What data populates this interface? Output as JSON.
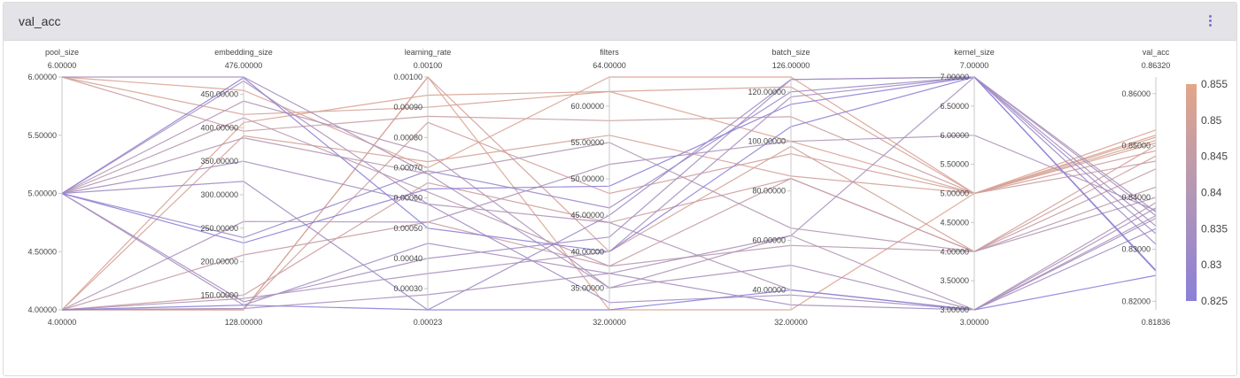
{
  "card": {
    "title": "val_acc"
  },
  "colors": {
    "low": "#8b7fd9",
    "mid": "#b497b5",
    "high": "#e2a68a"
  },
  "chart_data": {
    "type": "parallel_coordinates",
    "color_dimension": "val_acc",
    "axes": [
      {
        "name": "pool_size",
        "max_label": "6.00000",
        "min_label": "4.00000",
        "range": [
          4,
          6
        ],
        "ticks": [
          "4.00000",
          "4.50000",
          "5.00000",
          "5.50000",
          "6.00000"
        ],
        "tick_values": [
          4,
          4.5,
          5,
          5.5,
          6
        ]
      },
      {
        "name": "embedding_size",
        "max_label": "476.00000",
        "min_label": "128.00000",
        "range": [
          128,
          476
        ],
        "ticks": [
          "150.00000",
          "200.00000",
          "250.00000",
          "300.00000",
          "350.00000",
          "400.00000",
          "450.00000"
        ],
        "tick_values": [
          150,
          200,
          250,
          300,
          350,
          400,
          450
        ]
      },
      {
        "name": "learning_rate",
        "max_label": "0.00100",
        "min_label": "0.00023",
        "range": [
          0.00023,
          0.001
        ],
        "ticks": [
          "0.00030",
          "0.00040",
          "0.00050",
          "0.00060",
          "0.00070",
          "0.00080",
          "0.00090",
          "0.00100"
        ],
        "tick_values": [
          0.0003,
          0.0004,
          0.0005,
          0.0006,
          0.0007,
          0.0008,
          0.0009,
          0.001
        ]
      },
      {
        "name": "filters",
        "max_label": "64.00000",
        "min_label": "32.00000",
        "range": [
          32,
          64
        ],
        "ticks": [
          "35.00000",
          "40.00000",
          "45.00000",
          "50.00000",
          "55.00000",
          "60.00000"
        ],
        "tick_values": [
          35,
          40,
          45,
          50,
          55,
          60
        ]
      },
      {
        "name": "batch_size",
        "max_label": "126.00000",
        "min_label": "32.00000",
        "range": [
          32,
          126
        ],
        "ticks": [
          "40.00000",
          "60.00000",
          "80.00000",
          "100.00000",
          "120.00000"
        ],
        "tick_values": [
          40,
          60,
          80,
          100,
          120
        ]
      },
      {
        "name": "kernel_size",
        "max_label": "7.00000",
        "min_label": "3.00000",
        "range": [
          3,
          7
        ],
        "ticks": [
          "3.00000",
          "3.50000",
          "4.00000",
          "4.50000",
          "5.00000",
          "5.50000",
          "6.00000",
          "6.50000",
          "7.00000"
        ],
        "tick_values": [
          3,
          3.5,
          4,
          4.5,
          5,
          5.5,
          6,
          6.5,
          7
        ]
      },
      {
        "name": "val_acc",
        "max_label": "0.86320",
        "min_label": "0.81836",
        "range": [
          0.81836,
          0.8632
        ],
        "ticks": [
          "0.82000",
          "0.83000",
          "0.84000",
          "0.85000",
          "0.86000"
        ],
        "tick_values": [
          0.82,
          0.83,
          0.84,
          0.85,
          0.86
        ]
      }
    ],
    "colorbar": {
      "range": [
        0.825,
        0.855
      ],
      "ticks": [
        "0.825",
        "0.83",
        "0.835",
        "0.84",
        "0.845",
        "0.85",
        "0.855"
      ],
      "tick_values": [
        0.825,
        0.83,
        0.835,
        0.84,
        0.845,
        0.85,
        0.855
      ]
    },
    "lines": [
      [
        6,
        456,
        0.0007,
        64,
        126,
        5,
        0.852
      ],
      [
        6,
        420,
        0.0009,
        62,
        122,
        5,
        0.851
      ],
      [
        6,
        395,
        0.00087,
        58,
        110,
        5,
        0.847
      ],
      [
        4,
        408,
        0.00094,
        62,
        100,
        5,
        0.8516
      ],
      [
        4,
        388,
        0.00072,
        56,
        86,
        5,
        0.8505
      ],
      [
        4,
        128,
        0.001,
        32,
        32,
        5,
        0.853
      ],
      [
        4,
        128,
        0.001,
        40,
        98,
        4,
        0.85
      ],
      [
        4,
        150,
        0.00065,
        44,
        85,
        4,
        0.848
      ],
      [
        4,
        130,
        0.00085,
        48,
        95,
        5,
        0.849
      ],
      [
        4,
        210,
        0.00052,
        38,
        85,
        4,
        0.8455
      ],
      [
        5,
        385,
        0.00068,
        55,
        65,
        4,
        0.84
      ],
      [
        5,
        440,
        0.00075,
        35,
        62,
        3,
        0.839
      ],
      [
        5,
        415,
        0.00062,
        38,
        58,
        4,
        0.842
      ],
      [
        5,
        470,
        0.00058,
        44,
        40,
        3,
        0.838
      ],
      [
        5,
        135,
        0.00045,
        37,
        34,
        3,
        0.836
      ],
      [
        5,
        140,
        0.0004,
        42,
        125,
        7,
        0.8345
      ],
      [
        5,
        350,
        0.00058,
        33,
        38,
        3,
        0.834
      ],
      [
        5,
        320,
        0.00023,
        45,
        125,
        7,
        0.833
      ],
      [
        5,
        236,
        0.00069,
        46,
        120,
        7,
        0.831
      ],
      [
        6,
        476,
        0.00068,
        35,
        50,
        3,
        0.8365
      ],
      [
        4,
        260,
        0.00052,
        52,
        100,
        6,
        0.8375
      ],
      [
        4,
        130,
        0.00028,
        37,
        62,
        7,
        0.8372
      ],
      [
        4,
        145,
        0.00035,
        40,
        118,
        7,
        0.8365
      ],
      [
        5,
        228,
        0.00063,
        49,
        115,
        7,
        0.826
      ],
      [
        5,
        475,
        0.0005,
        40,
        106,
        7,
        0.8258
      ],
      [
        4,
        135,
        0.00023,
        32,
        40,
        3,
        0.825
      ]
    ]
  }
}
